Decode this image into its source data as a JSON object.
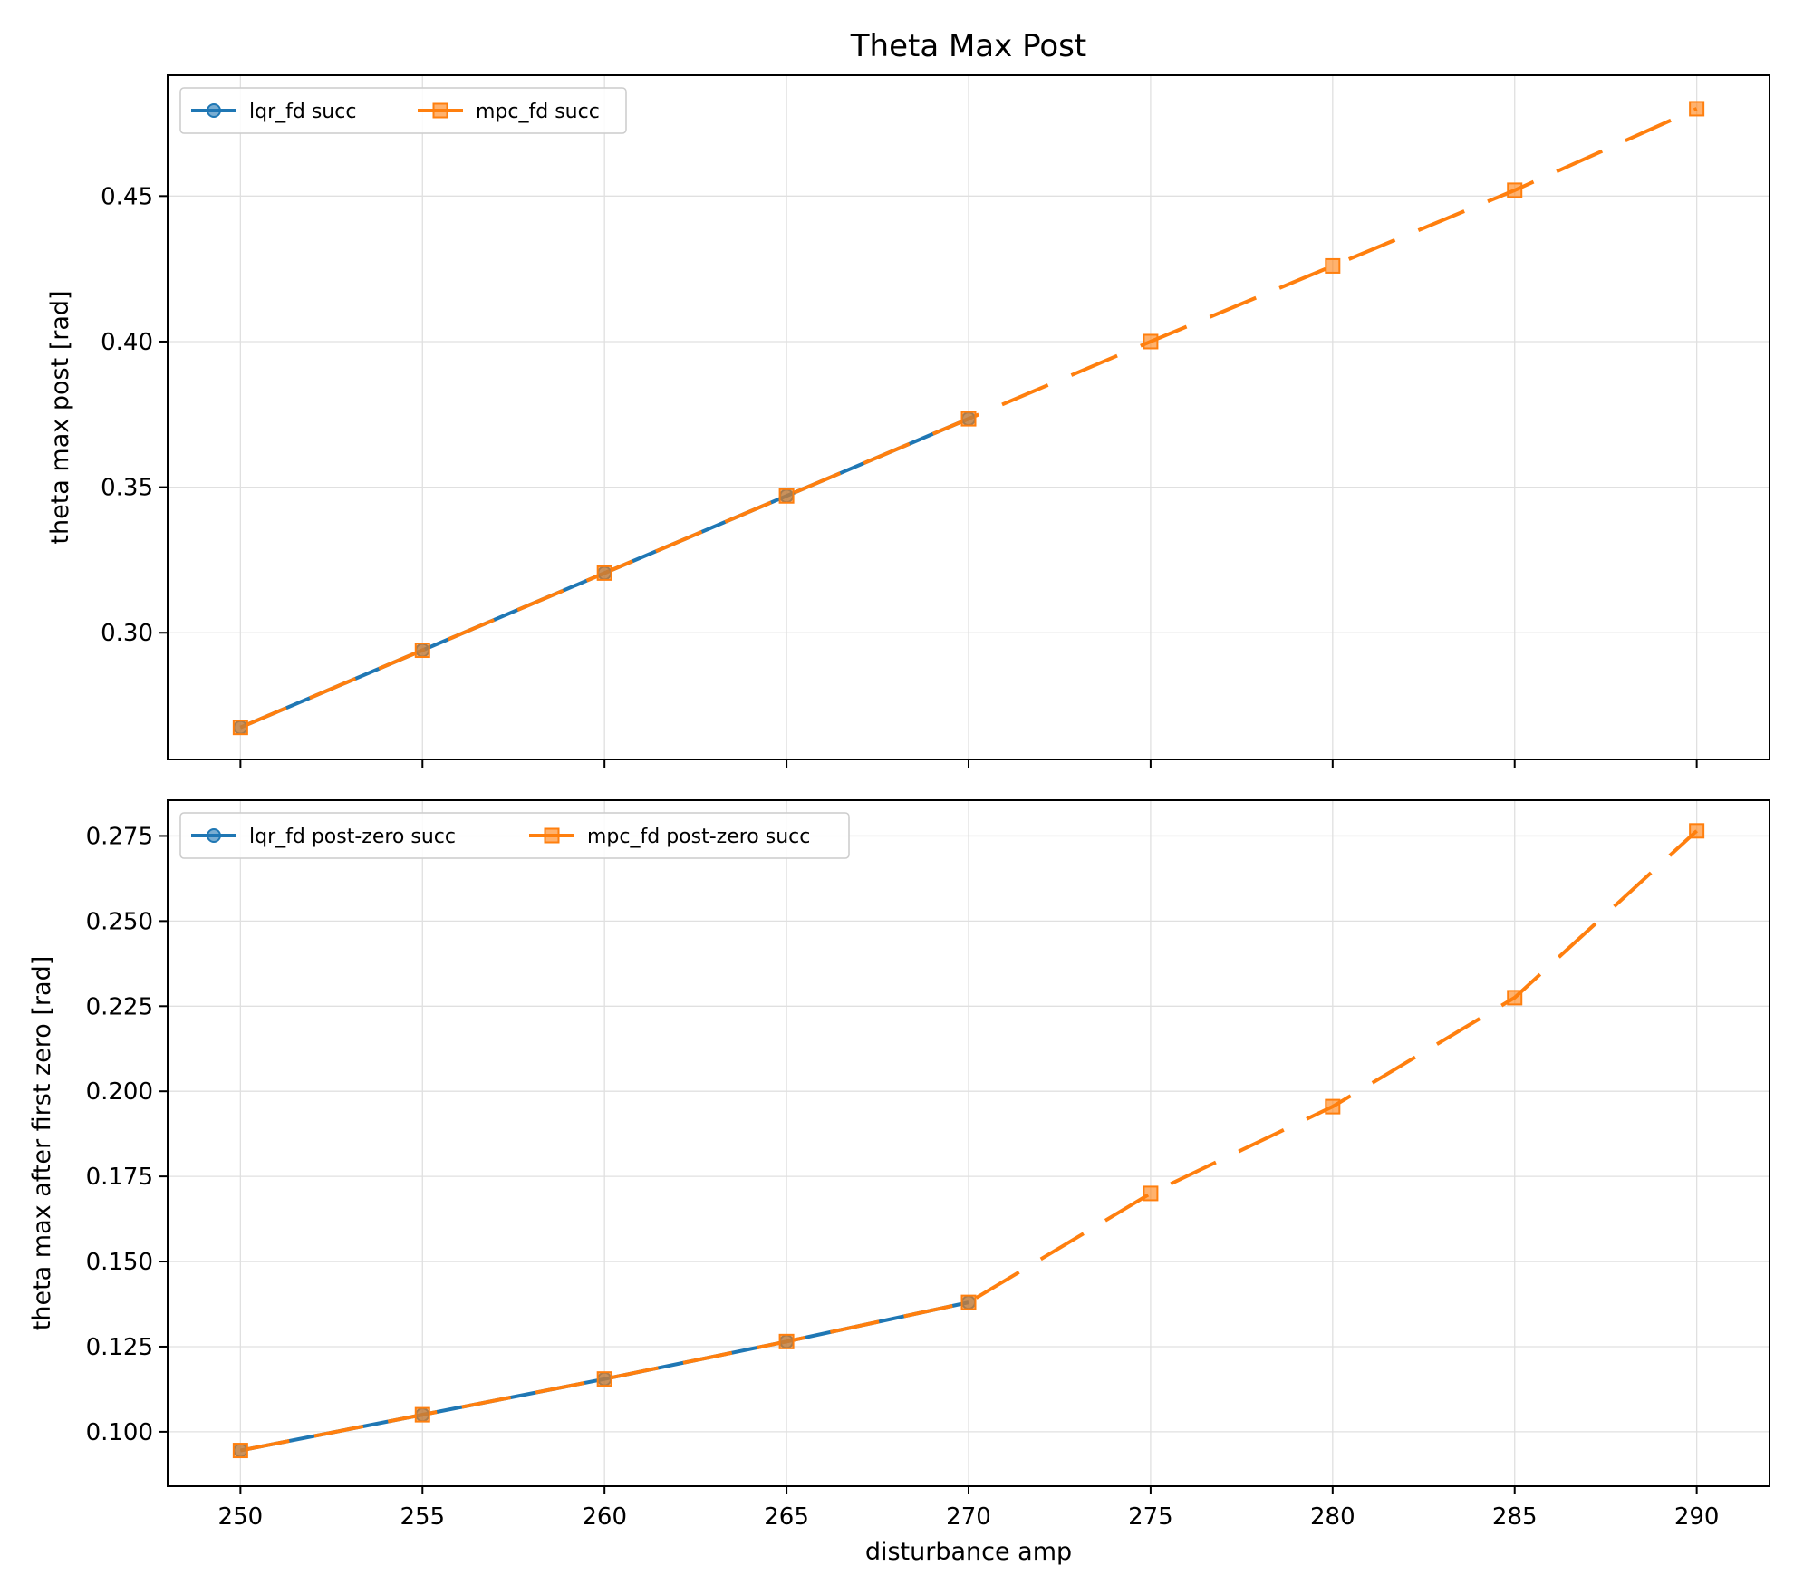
{
  "figure": {
    "title": "Theta Max Post",
    "xlabel": "disturbance amp"
  },
  "colors": {
    "lqr": "#1f77b4",
    "mpc": "#ff7f0e",
    "grid": "#e0e0e0"
  },
  "chart_data": [
    {
      "type": "line",
      "title": "Theta Max Post",
      "xlabel": "",
      "ylabel": "theta max post [rad]",
      "xlim": [
        248,
        292
      ],
      "ylim": [
        0.2565,
        0.4915
      ],
      "xticks": [
        "250",
        "255",
        "260",
        "265",
        "270",
        "275",
        "280",
        "285",
        "290"
      ],
      "yticks": [
        "0.30",
        "0.35",
        "0.40",
        "0.45"
      ],
      "grid": true,
      "legend": "top-left",
      "series": [
        {
          "name": "lqr_fd succ",
          "color": "#1f77b4",
          "marker": "circle",
          "dash": "solid",
          "x": [
            250,
            255,
            260,
            265,
            270
          ],
          "y": [
            0.2675,
            0.294,
            0.3205,
            0.347,
            0.3735
          ]
        },
        {
          "name": "mpc_fd succ",
          "color": "#ff7f0e",
          "marker": "square",
          "dash": "dashed",
          "x": [
            250,
            255,
            260,
            265,
            270,
            275,
            280,
            285,
            290
          ],
          "y": [
            0.2675,
            0.294,
            0.3205,
            0.347,
            0.3735,
            0.4,
            0.426,
            0.452,
            0.48
          ]
        }
      ]
    },
    {
      "type": "line",
      "title": "",
      "xlabel": "disturbance amp",
      "ylabel": "theta max after first zero [rad]",
      "xlim": [
        248,
        292
      ],
      "ylim": [
        0.084,
        0.2855
      ],
      "xticks": [
        "250",
        "255",
        "260",
        "265",
        "270",
        "275",
        "280",
        "285",
        "290"
      ],
      "yticks": [
        "0.100",
        "0.125",
        "0.150",
        "0.175",
        "0.200",
        "0.225",
        "0.250",
        "0.275"
      ],
      "grid": true,
      "legend": "top-left",
      "series": [
        {
          "name": "lqr_fd post-zero succ",
          "color": "#1f77b4",
          "marker": "circle",
          "dash": "solid",
          "x": [
            250,
            255,
            260,
            265,
            270
          ],
          "y": [
            0.0945,
            0.105,
            0.1155,
            0.1265,
            0.138
          ]
        },
        {
          "name": "mpc_fd post-zero succ",
          "color": "#ff7f0e",
          "marker": "square",
          "dash": "dashed",
          "x": [
            250,
            255,
            260,
            265,
            270,
            275,
            280,
            285,
            290
          ],
          "y": [
            0.0945,
            0.105,
            0.1155,
            0.1265,
            0.138,
            0.17,
            0.1955,
            0.2275,
            0.2765
          ]
        }
      ]
    }
  ]
}
